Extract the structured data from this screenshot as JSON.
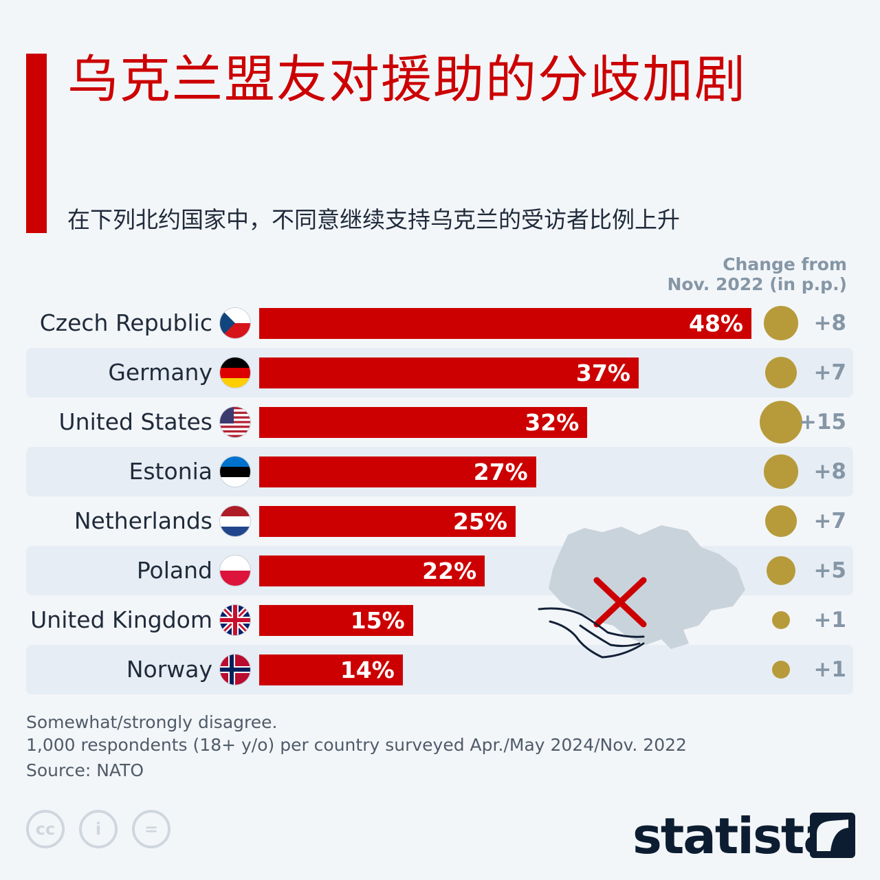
{
  "title": "乌克兰盟友对援助的分歧加剧",
  "subtitle": "在下列北约国家中，不同意继续支持乌克兰的受访者比例上升",
  "change_header": [
    "Change from",
    "Nov. 2022 (in p.p.)"
  ],
  "chart_data": {
    "type": "bar",
    "orientation": "horizontal",
    "categories": [
      "Czech Republic",
      "Germany",
      "United States",
      "Estonia",
      "Netherlands",
      "Poland",
      "United Kingdom",
      "Norway"
    ],
    "values": [
      48,
      37,
      32,
      27,
      25,
      22,
      15,
      14
    ],
    "value_labels": [
      "48%",
      "37%",
      "32%",
      "27%",
      "25%",
      "22%",
      "15%",
      "14%"
    ],
    "change_values": [
      8,
      7,
      15,
      8,
      7,
      5,
      1,
      1
    ],
    "change_labels": [
      "+8",
      "+7",
      "+15",
      "+8",
      "+7",
      "+5",
      "+1",
      "+1"
    ],
    "bar_color": "#cc0000",
    "dot_color": "#b79b3b",
    "xlim": [
      0,
      48
    ]
  },
  "flags": [
    "czech-flag-icon",
    "germany-flag-icon",
    "usa-flag-icon",
    "estonia-flag-icon",
    "netherlands-flag-icon",
    "poland-flag-icon",
    "uk-flag-icon",
    "norway-flag-icon"
  ],
  "footnote_lines": [
    "Somewhat/strongly disagree.",
    "1,000 respondents (18+ y/o) per country surveyed Apr./May 2024/Nov. 2022"
  ],
  "source": "Source: NATO",
  "logo_text": "statista",
  "license_icons": [
    "cc",
    "i",
    "="
  ]
}
